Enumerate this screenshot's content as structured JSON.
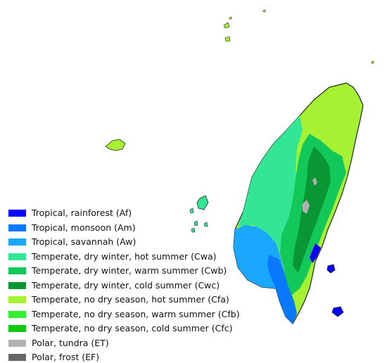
{
  "legend": {
    "items": [
      {
        "label": "Tropical, rainforest (Af)",
        "code": "Af",
        "color": "#0a00fa"
      },
      {
        "label": "Tropical, monsoon (Am)",
        "code": "Am",
        "color": "#0a78ff"
      },
      {
        "label": "Tropical, savannah (Aw)",
        "code": "Aw",
        "color": "#1aa8ff"
      },
      {
        "label": "Temperate, dry winter, hot summer (Cwa)",
        "code": "Cwa",
        "color": "#32e696"
      },
      {
        "label": "Temperate, dry winter, warm summer (Cwb)",
        "code": "Cwb",
        "color": "#12c85a"
      },
      {
        "label": "Temperate, dry winter, cold summer (Cwc)",
        "code": "Cwc",
        "color": "#0a9632"
      },
      {
        "label": "Temperate, no dry season, hot summer (Cfa)",
        "code": "Cfa",
        "color": "#a6f232"
      },
      {
        "label": "Temperate, no dry season, warm summer (Cfb)",
        "code": "Cfb",
        "color": "#32f032"
      },
      {
        "label": "Temperate, no dry season, cold summer (Cfc)",
        "code": "Cfc",
        "color": "#10c810"
      },
      {
        "label": "Polar, tundra (ET)",
        "code": "ET",
        "color": "#b2b2b2"
      },
      {
        "label": "Polar, frost (EF)",
        "code": "EF",
        "color": "#666666"
      }
    ]
  }
}
